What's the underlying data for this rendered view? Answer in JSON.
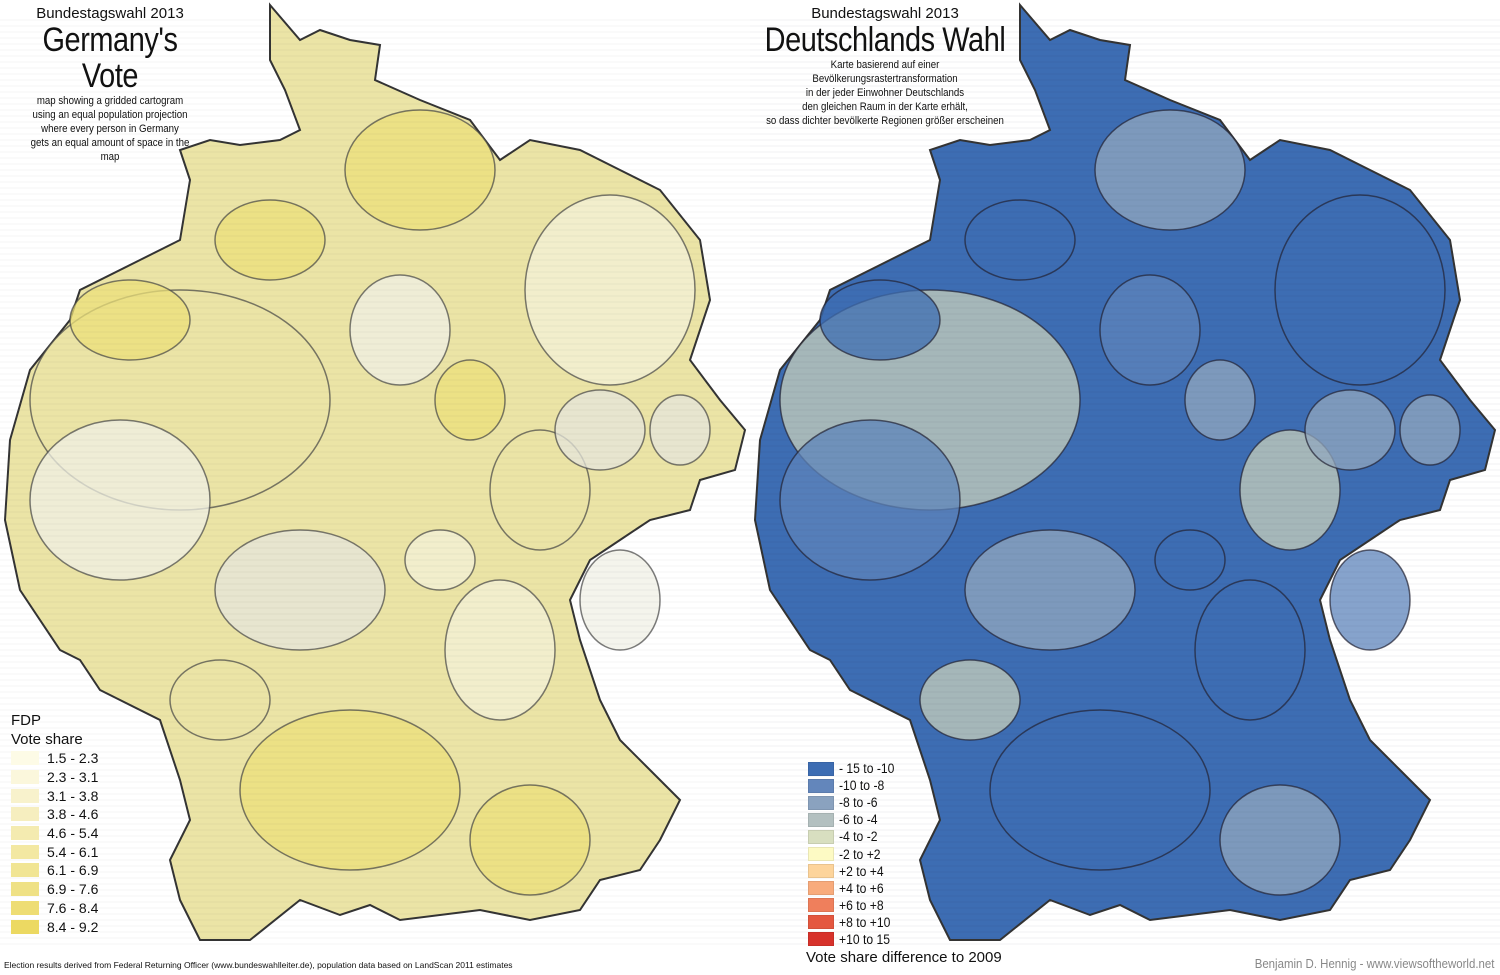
{
  "left": {
    "kicker": "Bundestagswahl 2013",
    "title": "Germany's Vote",
    "subtitle": [
      "map showing a gridded cartogram",
      "using an equal population projection",
      "where every person in Germany",
      "gets an equal amount of space in the map"
    ],
    "legend": {
      "party": "FDP",
      "heading": "Vote share",
      "items": [
        {
          "label": "1.5 - 2.3",
          "color": "#fdfbe6"
        },
        {
          "label": "2.3 - 3.1",
          "color": "#fbf7dc"
        },
        {
          "label": "3.1 - 3.8",
          "color": "#f8f2cc"
        },
        {
          "label": "3.8 - 4.6",
          "color": "#f6eebf"
        },
        {
          "label": "4.6 - 5.4",
          "color": "#f4ebb0"
        },
        {
          "label": "5.4 - 6.1",
          "color": "#f3e8a2"
        },
        {
          "label": "6.1 - 6.9",
          "color": "#f1e594"
        },
        {
          "label": "6.9 - 7.6",
          "color": "#efe185"
        },
        {
          "label": "7.6 - 8.4",
          "color": "#eedd74"
        },
        {
          "label": "8.4 - 9.2",
          "color": "#ecd962"
        }
      ]
    }
  },
  "right": {
    "kicker": "Bundestagswahl 2013",
    "title": "Deutschlands Wahl",
    "subtitle": [
      "Karte basierend auf einer Bevölkerungsrastertransformation",
      "in der jeder Einwohner Deutschlands",
      "den gleichen Raum in der Karte erhält,",
      "so dass dichter bevölkerte Regionen größer erscheinen"
    ],
    "legend": {
      "items": [
        {
          "label": "- 15 to -10",
          "color": "#3d6db3"
        },
        {
          "label": "-10 to -8",
          "color": "#6386bb"
        },
        {
          "label": "-8 to -6",
          "color": "#8aa2bf"
        },
        {
          "label": "-6 to -4",
          "color": "#b3c0c0"
        },
        {
          "label": "-4 to -2",
          "color": "#d8dfc0"
        },
        {
          "label": "-2 to +2",
          "color": "#fdfac4"
        },
        {
          "label": "+2 to +4",
          "color": "#fdd49b"
        },
        {
          "label": "+4 to +6",
          "color": "#f8ab7c"
        },
        {
          "label": "+6 to +8",
          "color": "#ef7f5c"
        },
        {
          "label": "+8 to +10",
          "color": "#e4573f"
        },
        {
          "label": "+10 to 15",
          "color": "#d7322b"
        }
      ],
      "caption": "Vote share difference to 2009"
    }
  },
  "footer": {
    "source": "Election results derived from Federal Returning Officer (www.bundeswahlleiter.de), population data based on LandScan 2011 estimates",
    "credit": "Benjamin D. Hennig - www.viewsoftheworld.net"
  },
  "colors": {
    "left_base": "#ebe4a6",
    "left_light": "#f4f1d8",
    "left_strong": "#ece07a",
    "right_base": "#3d6db3",
    "right_light": "#93a8bf",
    "right_pale": "#c8d0bb"
  }
}
